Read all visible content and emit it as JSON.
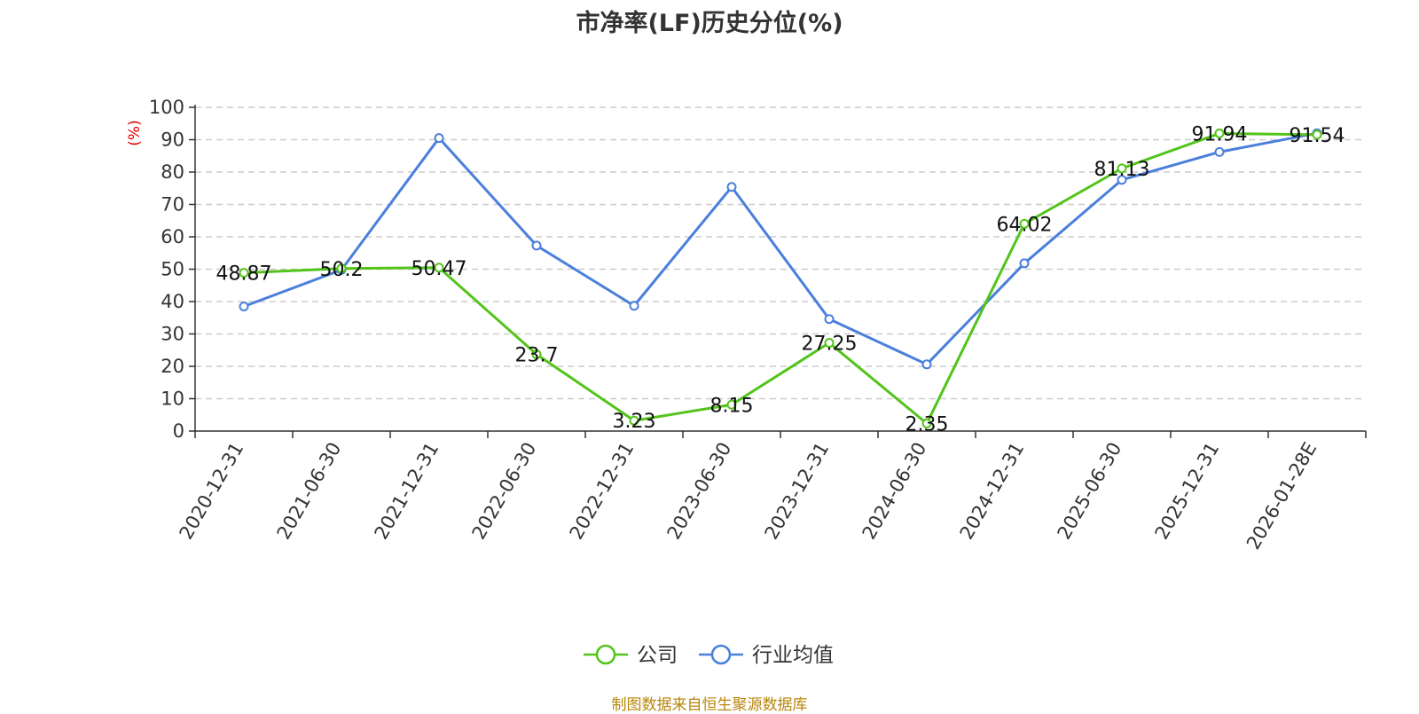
{
  "chart_data": {
    "type": "line",
    "title": "市净率(LF)历史分位(%)",
    "ylabel": "(%)",
    "xlabel": "",
    "ylim": [
      0,
      100
    ],
    "yticks": [
      0,
      10,
      20,
      30,
      40,
      50,
      60,
      70,
      80,
      90,
      100
    ],
    "grid": true,
    "legend_position": "bottom",
    "categories": [
      "2020-12-31",
      "2021-06-30",
      "2021-12-31",
      "2022-06-30",
      "2022-12-31",
      "2023-06-30",
      "2023-12-31",
      "2024-06-30",
      "2024-12-31",
      "2025-06-30",
      "2025-12-31",
      "2026-01-28E"
    ],
    "series": [
      {
        "name": "公司",
        "color": "#52c41a",
        "values": [
          48.87,
          50.2,
          50.47,
          23.7,
          3.23,
          8.15,
          27.25,
          2.35,
          64.02,
          81.13,
          91.94,
          91.54
        ],
        "labels": [
          "48.87",
          "50.2",
          "50.47",
          "23.7",
          "3.23",
          "8.15",
          "27.25",
          "2.35",
          "64.02",
          "81.13",
          "91.94",
          "91.54"
        ]
      },
      {
        "name": "行业均值",
        "color": "#4a7fdc",
        "values": [
          38.5,
          49.8,
          90.5,
          57.3,
          38.7,
          75.4,
          34.6,
          20.6,
          51.8,
          77.6,
          86.2,
          92.0
        ]
      }
    ],
    "source": "制图数据来自恒生聚源数据库"
  }
}
